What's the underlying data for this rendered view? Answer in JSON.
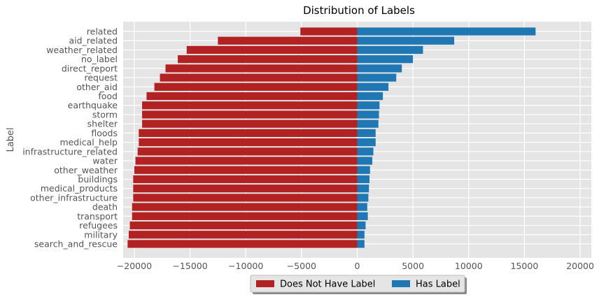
{
  "chart_data": {
    "type": "bar",
    "orientation": "horizontal",
    "title": "Distribution of Labels",
    "xlabel": "",
    "ylabel": "Label",
    "xlim": [
      -21000,
      21000
    ],
    "xticks": [
      -20000,
      -15000,
      -10000,
      -5000,
      0,
      5000,
      10000,
      15000,
      20000
    ],
    "xtick_labels": [
      "−20000",
      "−15000",
      "−10000",
      "−5000",
      "0",
      "5000",
      "10000",
      "15000",
      "20000"
    ],
    "grid": true,
    "legend_position": "bottom-center",
    "categories": [
      "related",
      "aid_related",
      "weather_related",
      "no_label",
      "direct_report",
      "request",
      "other_aid",
      "food",
      "earthquake",
      "storm",
      "shelter",
      "floods",
      "medical_help",
      "infrastructure_related",
      "water",
      "other_weather",
      "buildings",
      "medical_products",
      "other_infrastructure",
      "death",
      "transport",
      "refugees",
      "military",
      "search_and_rescue"
    ],
    "series": [
      {
        "name": "Does Not Have Label",
        "color": "#b22222",
        "values": [
          -5100,
          -12500,
          -15300,
          -16100,
          -17200,
          -17700,
          -18200,
          -18900,
          -19300,
          -19300,
          -19300,
          -19600,
          -19600,
          -19700,
          -19900,
          -20000,
          -20100,
          -20100,
          -20100,
          -20200,
          -20200,
          -20400,
          -20500,
          -20600
        ]
      },
      {
        "name": "Has Label",
        "color": "#1f77b4",
        "values": [
          16000,
          8700,
          5900,
          5000,
          4000,
          3500,
          2800,
          2300,
          2000,
          1950,
          1900,
          1650,
          1650,
          1450,
          1350,
          1150,
          1100,
          1050,
          1000,
          900,
          950,
          750,
          650,
          650
        ]
      }
    ]
  }
}
